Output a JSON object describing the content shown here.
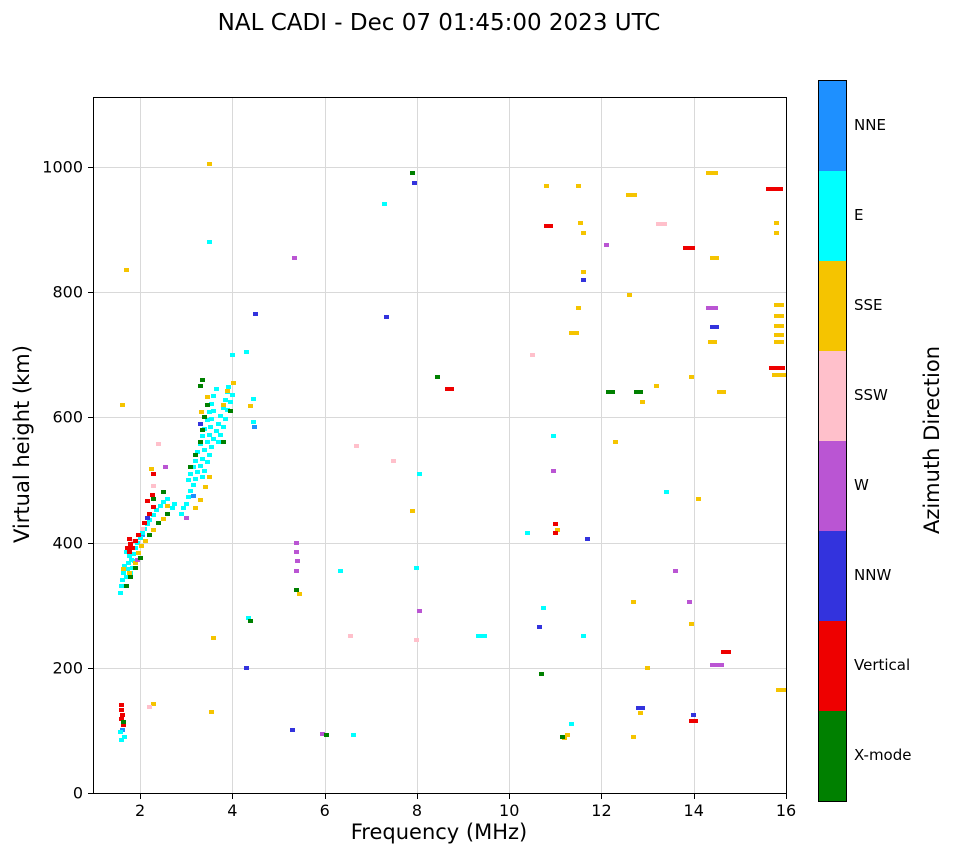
{
  "chart_data": {
    "type": "scatter",
    "title": "NAL CADI - Dec 07 01:45:00 2023 UTC",
    "xlabel": "Frequency (MHz)",
    "ylabel": "Virtual height (km)",
    "colorbar_label": "Azimuth Direction",
    "xlim": [
      1.0,
      16.0
    ],
    "ylim": [
      0,
      1110
    ],
    "xticks": [
      2,
      4,
      6,
      8,
      10,
      12,
      14,
      16
    ],
    "yticks": [
      0,
      200,
      400,
      600,
      800,
      1000
    ],
    "grid": true,
    "legend_position": "discrete-colorbar-right",
    "point_format": "[frequency_MHz, virtual_height_km, optional_dash_width_MHz]",
    "categories": [
      {
        "name": "NNE",
        "color": "#1E90FF"
      },
      {
        "name": "E",
        "color": "#00FFFF"
      },
      {
        "name": "SSE",
        "color": "#F5C400"
      },
      {
        "name": "SSW",
        "color": "#FFC0CB"
      },
      {
        "name": "W",
        "color": "#BA55D3"
      },
      {
        "name": "NNW",
        "color": "#3333DD"
      },
      {
        "name": "Vertical",
        "color": "#EE0000"
      },
      {
        "name": "X-mode",
        "color": "#008000"
      }
    ],
    "series": [
      {
        "name": "NNE",
        "points": [
          [
            1.62,
            100
          ],
          [
            2.05,
            412
          ],
          [
            3.15,
            475
          ],
          [
            4.47,
            585
          ]
        ]
      },
      {
        "name": "E",
        "points": [
          [
            1.57,
            97
          ],
          [
            1.66,
            90
          ],
          [
            1.6,
            85
          ],
          [
            1.58,
            320
          ],
          [
            1.6,
            330
          ],
          [
            1.62,
            340
          ],
          [
            1.64,
            352
          ],
          [
            1.66,
            362
          ],
          [
            1.7,
            345
          ],
          [
            1.72,
            358
          ],
          [
            1.74,
            368
          ],
          [
            1.76,
            378
          ],
          [
            1.7,
            385
          ],
          [
            1.78,
            390
          ],
          [
            1.82,
            372
          ],
          [
            1.86,
            382
          ],
          [
            1.9,
            392
          ],
          [
            1.95,
            400
          ],
          [
            2.0,
            408
          ],
          [
            1.8,
            352
          ],
          [
            1.84,
            360
          ],
          [
            1.88,
            370
          ],
          [
            2.05,
            415
          ],
          [
            2.1,
            422
          ],
          [
            2.15,
            430
          ],
          [
            2.2,
            436
          ],
          [
            2.3,
            444
          ],
          [
            2.35,
            452
          ],
          [
            2.45,
            458
          ],
          [
            2.5,
            464
          ],
          [
            2.6,
            470
          ],
          [
            2.7,
            455
          ],
          [
            2.75,
            462
          ],
          [
            2.9,
            445
          ],
          [
            2.95,
            455
          ],
          [
            3.0,
            462
          ],
          [
            3.05,
            472
          ],
          [
            3.1,
            482
          ],
          [
            3.15,
            492
          ],
          [
            3.2,
            502
          ],
          [
            3.25,
            512
          ],
          [
            3.3,
            522
          ],
          [
            3.35,
            534
          ],
          [
            3.4,
            548
          ],
          [
            3.45,
            560
          ],
          [
            3.5,
            572
          ],
          [
            3.52,
            585
          ],
          [
            3.55,
            598
          ],
          [
            3.6,
            610
          ],
          [
            3.55,
            622
          ],
          [
            3.6,
            634
          ],
          [
            3.65,
            645
          ],
          [
            3.05,
            500
          ],
          [
            3.1,
            510
          ],
          [
            3.15,
            520
          ],
          [
            3.2,
            530
          ],
          [
            3.25,
            545
          ],
          [
            3.3,
            558
          ],
          [
            3.35,
            570
          ],
          [
            3.4,
            582
          ],
          [
            3.45,
            595
          ],
          [
            3.5,
            608
          ],
          [
            3.35,
            505
          ],
          [
            3.4,
            515
          ],
          [
            3.45,
            528
          ],
          [
            3.5,
            540
          ],
          [
            3.55,
            552
          ],
          [
            3.6,
            565
          ],
          [
            3.65,
            578
          ],
          [
            3.7,
            590
          ],
          [
            3.75,
            602
          ],
          [
            3.8,
            615
          ],
          [
            3.85,
            628
          ],
          [
            3.9,
            640
          ],
          [
            3.7,
            560
          ],
          [
            3.75,
            572
          ],
          [
            3.8,
            585
          ],
          [
            3.85,
            598
          ],
          [
            3.9,
            612
          ],
          [
            3.95,
            624
          ],
          [
            4.0,
            636
          ],
          [
            3.92,
            648
          ],
          [
            4.0,
            700
          ],
          [
            3.5,
            880
          ],
          [
            4.3,
            705
          ],
          [
            4.35,
            280
          ],
          [
            4.45,
            592
          ],
          [
            4.45,
            630
          ],
          [
            6.35,
            355
          ],
          [
            6.62,
            92
          ],
          [
            7.3,
            940
          ],
          [
            8.0,
            360
          ],
          [
            8.05,
            510
          ],
          [
            9.4,
            250,
            0.25
          ],
          [
            10.4,
            415
          ],
          [
            10.75,
            295
          ],
          [
            10.95,
            570
          ],
          [
            11.35,
            110
          ],
          [
            11.6,
            250
          ],
          [
            13.4,
            480
          ]
        ]
      },
      {
        "name": "SSE",
        "points": [
          [
            1.7,
            835
          ],
          [
            1.62,
            620
          ],
          [
            2.3,
            142
          ],
          [
            3.55,
            130
          ],
          [
            3.6,
            248
          ],
          [
            3.5,
            1005
          ],
          [
            1.65,
            358
          ],
          [
            1.76,
            352
          ],
          [
            1.9,
            368
          ],
          [
            1.96,
            384
          ],
          [
            2.02,
            394
          ],
          [
            2.12,
            402
          ],
          [
            2.3,
            420
          ],
          [
            2.5,
            438
          ],
          [
            2.6,
            458
          ],
          [
            2.25,
            518
          ],
          [
            3.2,
            455
          ],
          [
            3.3,
            468
          ],
          [
            3.42,
            488
          ],
          [
            3.5,
            505
          ],
          [
            3.32,
            608
          ],
          [
            3.46,
            632
          ],
          [
            3.8,
            620
          ],
          [
            3.9,
            642
          ],
          [
            4.02,
            655
          ],
          [
            4.4,
            618
          ],
          [
            5.45,
            318
          ],
          [
            7.9,
            450
          ],
          [
            10.8,
            970
          ],
          [
            11.5,
            970
          ],
          [
            11.2,
            88
          ],
          [
            11.27,
            93
          ],
          [
            11.4,
            735,
            0.22
          ],
          [
            11.5,
            775
          ],
          [
            11.55,
            910
          ],
          [
            11.6,
            895
          ],
          [
            11.62,
            832
          ],
          [
            11.05,
            420
          ],
          [
            12.3,
            560
          ],
          [
            12.6,
            795
          ],
          [
            12.65,
            955,
            0.22
          ],
          [
            12.7,
            305
          ],
          [
            12.7,
            90
          ],
          [
            12.85,
            128
          ],
          [
            12.9,
            625
          ],
          [
            13.0,
            200
          ],
          [
            13.2,
            650
          ],
          [
            13.95,
            665
          ],
          [
            13.95,
            270
          ],
          [
            14.1,
            470
          ],
          [
            14.4,
            990,
            0.25
          ],
          [
            14.45,
            855,
            0.2
          ],
          [
            14.4,
            720,
            0.2
          ],
          [
            14.6,
            640,
            0.2
          ],
          [
            15.8,
            910
          ],
          [
            15.8,
            895
          ],
          [
            15.85,
            780,
            0.2
          ],
          [
            15.85,
            762,
            0.2
          ],
          [
            15.85,
            746,
            0.2
          ],
          [
            15.85,
            732,
            0.2
          ],
          [
            15.85,
            720,
            0.2
          ],
          [
            15.85,
            668,
            0.3
          ],
          [
            15.9,
            165,
            0.25
          ]
        ]
      },
      {
        "name": "SSW",
        "points": [
          [
            2.2,
            137
          ],
          [
            1.85,
            402
          ],
          [
            2.05,
            422
          ],
          [
            2.3,
            490
          ],
          [
            2.4,
            558
          ],
          [
            6.55,
            250
          ],
          [
            6.7,
            555
          ],
          [
            7.5,
            530
          ],
          [
            8.0,
            245
          ],
          [
            10.5,
            700
          ],
          [
            13.3,
            908,
            0.25
          ]
        ]
      },
      {
        "name": "W",
        "points": [
          [
            1.95,
            372
          ],
          [
            2.55,
            520
          ],
          [
            3.0,
            440
          ],
          [
            5.35,
            855
          ],
          [
            5.4,
            400
          ],
          [
            5.4,
            385
          ],
          [
            5.42,
            370
          ],
          [
            5.38,
            355
          ],
          [
            5.95,
            95
          ],
          [
            8.05,
            290
          ],
          [
            10.95,
            515
          ],
          [
            12.1,
            875
          ],
          [
            13.6,
            355
          ],
          [
            13.9,
            305
          ],
          [
            14.4,
            775,
            0.25
          ],
          [
            14.5,
            205,
            0.3
          ]
        ]
      },
      {
        "name": "NNW",
        "points": [
          [
            2.15,
            440
          ],
          [
            3.3,
            590
          ],
          [
            4.3,
            200
          ],
          [
            4.5,
            765
          ],
          [
            5.3,
            100
          ],
          [
            7.35,
            760
          ],
          [
            7.95,
            975
          ],
          [
            10.65,
            265
          ],
          [
            10.9,
            905
          ],
          [
            11.6,
            820
          ],
          [
            11.7,
            405
          ],
          [
            12.85,
            135,
            0.2
          ],
          [
            14.0,
            125
          ],
          [
            14.45,
            745,
            0.2
          ]
        ]
      },
      {
        "name": "Vertical",
        "points": [
          [
            1.6,
            140
          ],
          [
            1.6,
            132
          ],
          [
            1.62,
            125
          ],
          [
            1.6,
            118
          ],
          [
            1.63,
            108
          ],
          [
            1.72,
            392
          ],
          [
            1.76,
            385
          ],
          [
            1.8,
            398
          ],
          [
            1.84,
            392
          ],
          [
            1.78,
            406
          ],
          [
            1.9,
            402
          ],
          [
            1.96,
            412
          ],
          [
            2.1,
            432
          ],
          [
            2.2,
            446
          ],
          [
            2.3,
            456
          ],
          [
            2.16,
            466
          ],
          [
            2.26,
            476
          ],
          [
            2.3,
            510
          ],
          [
            8.7,
            645,
            0.2
          ],
          [
            10.85,
            905,
            0.2
          ],
          [
            11.0,
            430
          ],
          [
            11.0,
            415
          ],
          [
            13.9,
            870,
            0.25
          ],
          [
            14.0,
            115,
            0.2
          ],
          [
            14.7,
            225,
            0.2
          ],
          [
            15.75,
            965,
            0.35
          ],
          [
            15.8,
            678,
            0.35
          ]
        ]
      },
      {
        "name": "X-mode",
        "points": [
          [
            1.65,
            113
          ],
          [
            1.7,
            330
          ],
          [
            1.8,
            345
          ],
          [
            1.9,
            360
          ],
          [
            2.0,
            375
          ],
          [
            2.2,
            412
          ],
          [
            2.4,
            432
          ],
          [
            2.6,
            446
          ],
          [
            2.3,
            470
          ],
          [
            2.5,
            480
          ],
          [
            3.1,
            520
          ],
          [
            3.2,
            540
          ],
          [
            3.3,
            560
          ],
          [
            3.35,
            580
          ],
          [
            3.4,
            600
          ],
          [
            3.45,
            620
          ],
          [
            3.3,
            650
          ],
          [
            3.35,
            660
          ],
          [
            3.8,
            560
          ],
          [
            3.95,
            610
          ],
          [
            4.4,
            275
          ],
          [
            5.4,
            325
          ],
          [
            6.05,
            93
          ],
          [
            7.9,
            990
          ],
          [
            8.45,
            665
          ],
          [
            10.7,
            190
          ],
          [
            11.15,
            90
          ],
          [
            12.2,
            640,
            0.2
          ],
          [
            12.8,
            640,
            0.2
          ]
        ]
      }
    ]
  }
}
